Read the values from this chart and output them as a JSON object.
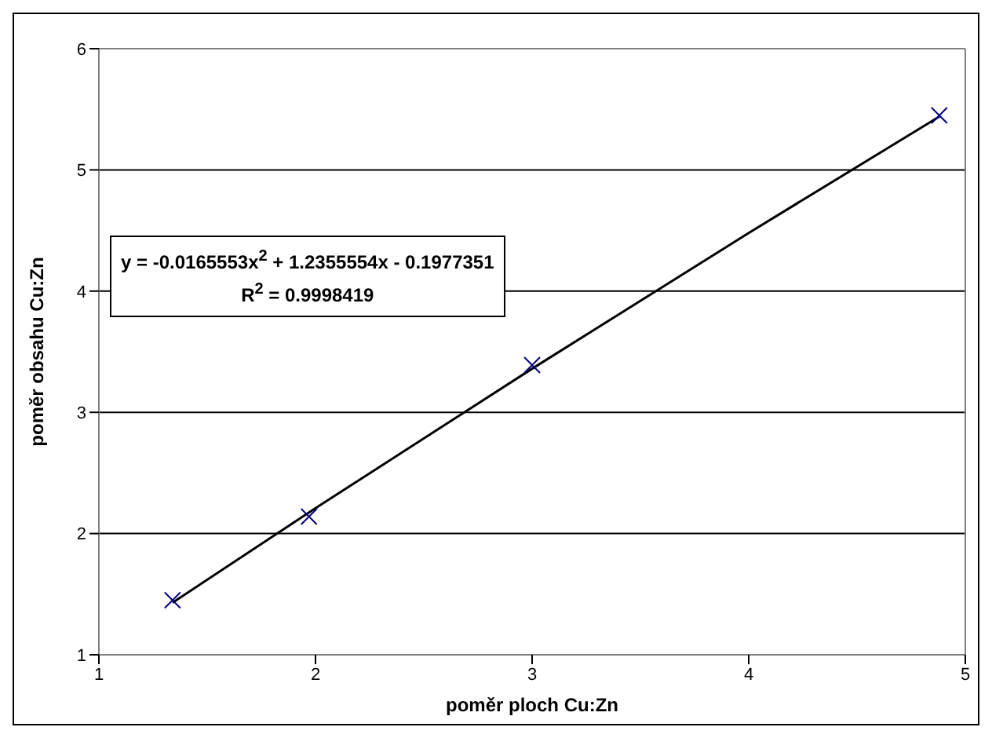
{
  "chart_data": {
    "type": "scatter",
    "xlabel": "poměr ploch Cu:Zn",
    "ylabel": "poměr obsahu Cu:Zn",
    "annotations": [
      "y = -0.0165553x$^{2}$ + 1.2355554x - 0.1977351",
      "R$^{2}$ = 0.9998419"
    ],
    "xlim": [
      1,
      5
    ],
    "xticks": [
      1,
      2,
      3,
      4,
      5
    ],
    "ylim": [
      1,
      6
    ],
    "yticks": [
      1,
      2,
      3,
      4,
      5,
      6
    ],
    "grid": "y",
    "series": [
      {
        "color": "#000080",
        "marker": "cross",
        "x": [
          1.34,
          1.97,
          3.0,
          4.88
        ],
        "values": [
          1.45,
          2.14,
          3.39,
          5.45
        ]
      },
      {
        "type": "line",
        "color": "#000000",
        "line_style": "solid",
        "marker": "none",
        "x": [
          1.34,
          2,
          3,
          4,
          4.88
        ],
        "values": [
          1.43,
          2.21,
          3.36,
          4.48,
          5.44
        ]
      }
    ]
  }
}
